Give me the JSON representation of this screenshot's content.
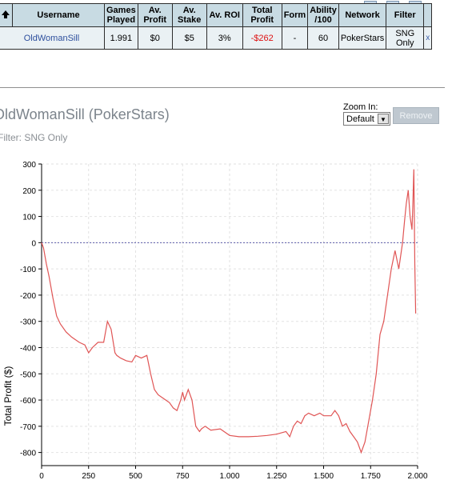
{
  "table": {
    "headers": [
      "Username",
      "Games Played",
      "Av. Profit",
      "Av. Stake",
      "Av. ROI",
      "Total Profit",
      "Form",
      "Ability /100",
      "Network",
      "Filter"
    ],
    "row": {
      "username": "OldWomanSill",
      "games_played": "1.991",
      "av_profit": "$0",
      "av_stake": "$5",
      "av_roi": "3%",
      "total_profit": "-$262",
      "form": "-",
      "ability": "60",
      "network": "PokerStars",
      "filter": "SNG Only",
      "remove": "x"
    },
    "colors": {
      "header_bg": "#c8dbe3",
      "row_bg": "#eaf1f4",
      "negative": "#dd1111"
    }
  },
  "player_title": "OldWomanSill (PokerStars)",
  "filter_label": "Filter: SNG Only",
  "zoom": {
    "label": "Zoom In:",
    "selected": "Default"
  },
  "remove_button": "Remove",
  "chart_data": {
    "type": "line",
    "xlabel": "",
    "ylabel": "Total Profit ($)",
    "xlim": [
      0,
      2000
    ],
    "ylim": [
      -850,
      300
    ],
    "x_ticks": [
      "0",
      "250",
      "500",
      "750",
      "1.000",
      "1.250",
      "1.500",
      "1.750",
      "2.000"
    ],
    "y_ticks": [
      "300",
      "200",
      "100",
      "0",
      "-100",
      "-200",
      "-300",
      "-400",
      "-500",
      "-600",
      "-700",
      "-800"
    ],
    "grid": true,
    "zero_line": true,
    "line_color": "#e05555",
    "series": [
      {
        "x": [
          0,
          10,
          25,
          40,
          60,
          80,
          100,
          130,
          160,
          200,
          230,
          250,
          270,
          300,
          330,
          350,
          370,
          390,
          400,
          420,
          450,
          480,
          500,
          530,
          560,
          580,
          600,
          620,
          640,
          660,
          680,
          700,
          720,
          740,
          750,
          760,
          780,
          800,
          820,
          830,
          840,
          850,
          870,
          900,
          950,
          1000,
          1050,
          1100,
          1150,
          1200,
          1250,
          1300,
          1320,
          1340,
          1360,
          1380,
          1400,
          1420,
          1450,
          1480,
          1500,
          1520,
          1540,
          1560,
          1580,
          1600,
          1620,
          1640,
          1660,
          1680,
          1700,
          1720,
          1740,
          1760,
          1780,
          1800,
          1820,
          1840,
          1860,
          1880,
          1900,
          1920,
          1930,
          1940,
          1950,
          1960,
          1970,
          1975,
          1980,
          1985,
          1990
        ],
        "y": [
          0,
          -20,
          -80,
          -130,
          -210,
          -280,
          -310,
          -340,
          -360,
          -380,
          -390,
          -420,
          -400,
          -380,
          -380,
          -300,
          -330,
          -420,
          -430,
          -440,
          -450,
          -455,
          -430,
          -440,
          -430,
          -500,
          -560,
          -580,
          -590,
          -600,
          -610,
          -630,
          -640,
          -600,
          -570,
          -600,
          -560,
          -600,
          -700,
          -710,
          -720,
          -710,
          -700,
          -715,
          -710,
          -735,
          -740,
          -740,
          -738,
          -735,
          -730,
          -720,
          -740,
          -700,
          -680,
          -690,
          -660,
          -650,
          -660,
          -650,
          -660,
          -660,
          -660,
          -640,
          -660,
          -700,
          -690,
          -720,
          -740,
          -760,
          -800,
          -760,
          -680,
          -600,
          -500,
          -350,
          -300,
          -200,
          -100,
          -30,
          -100,
          0,
          80,
          150,
          200,
          100,
          50,
          150,
          280,
          -80,
          -270
        ]
      }
    ]
  }
}
